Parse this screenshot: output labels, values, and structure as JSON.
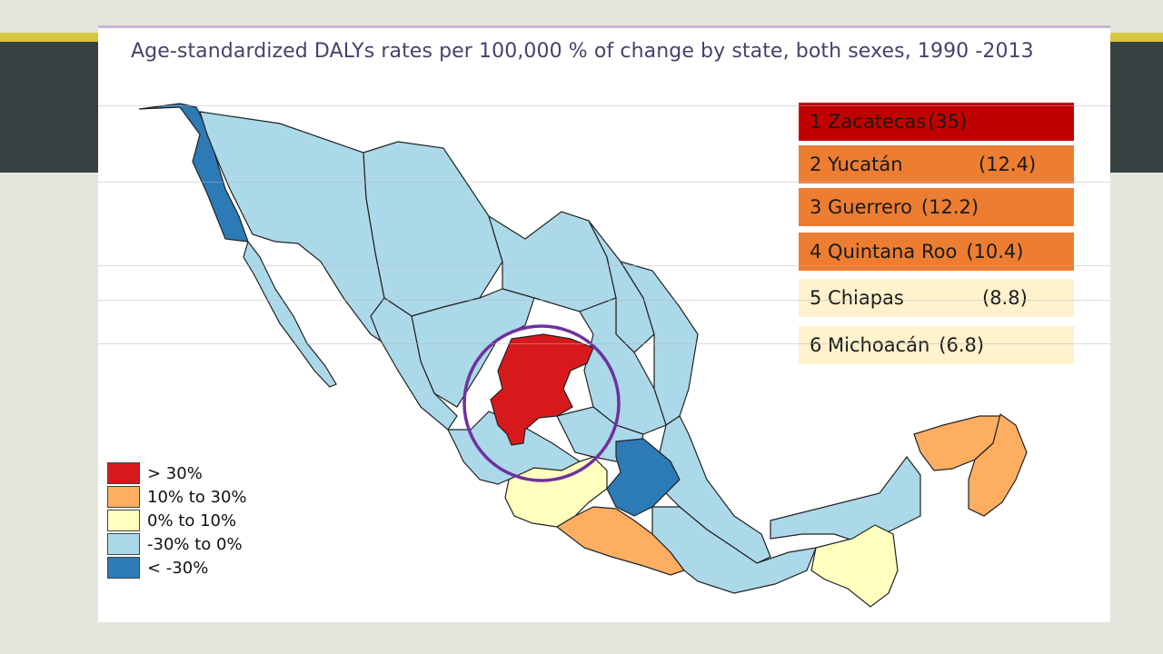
{
  "title": "Age-standardized DALYs rates per 100,000 % of change by state, both sexes, 1990 -2013",
  "colors": {
    "gt30": "#d7191c",
    "p10to30": "#fdae61",
    "p0to10": "#ffffbf",
    "m30to0": "#abd9e9",
    "ltm30": "#2c7bb6",
    "rank1": "#c00000",
    "rank2to4": "#ed7d31",
    "rank5to6": "#fff2cc",
    "circle": "#7030a0"
  },
  "rankings": [
    {
      "name": "1 Zacatecas",
      "value": "(35)"
    },
    {
      "name": "2 Yucatán",
      "value": "(12.4)"
    },
    {
      "name": "3 Guerrero",
      "value": "(12.2)"
    },
    {
      "name": "4 Quintana Roo",
      "value": "(10.4)"
    },
    {
      "name": "5 Chiapas",
      "value": "(8.8)"
    },
    {
      "name": "6 Michoacán",
      "value": "(6.8)"
    }
  ],
  "legend": [
    {
      "label": "> 30%",
      "color": "#d7191c"
    },
    {
      "label": "10% to 30%",
      "color": "#fdae61"
    },
    {
      "label": "0% to 10%",
      "color": "#ffffbf"
    },
    {
      "label": "-30% to 0%",
      "color": "#abd9e9"
    },
    {
      "label": "< -30%",
      "color": "#2c7bb6"
    }
  ]
}
